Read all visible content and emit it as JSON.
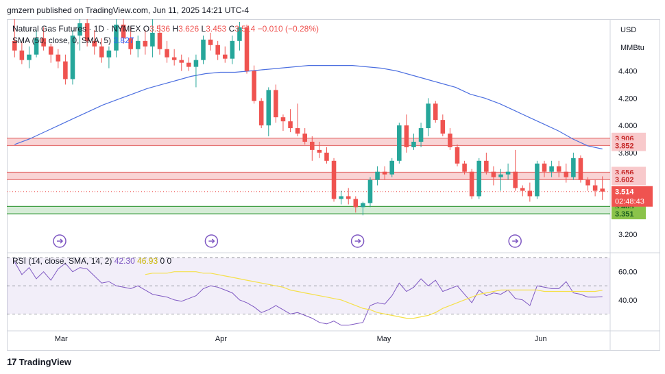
{
  "header": {
    "publisher_text": "gmzern published on TradingView.com, Jun 11, 2025 14:21 UTC-4"
  },
  "legend": {
    "symbol": "Natural Gas Futures · 1D · NYMEX",
    "o_label": "O",
    "o_value": "3.536",
    "h_label": "H",
    "h_value": "3.626",
    "l_label": "L",
    "l_value": "3.453",
    "c_label": "C",
    "c_value": "3.514",
    "change": "−0.010 (−0.28%)",
    "sma_label": "SMA (50, close, 0, SMA, 5)",
    "sma_value": "3.827",
    "rsi_label": "RSI (14, close, SMA, 14, 2)",
    "rsi_value": "42.30",
    "rsi_sma_value": "46.93",
    "rsi_zero1": "0",
    "rsi_zero2": "0"
  },
  "price_scale": {
    "currency": "USD",
    "unit": "MMBtu"
  },
  "footer": {
    "brand": "TradingView",
    "logo_text": "17"
  },
  "colors": {
    "up": "#26a69a",
    "down": "#ef5350",
    "sma": "#4c6fe0",
    "rsi": "#7e57c2",
    "rsi_sma": "#f5e04a",
    "res_zone": "#f7c6c7",
    "sup_zone": "#c8e6c9"
  },
  "chart_data": [
    {
      "type": "candlestick",
      "title": "Natural Gas Futures · 1D · NYMEX",
      "x_ticks": [
        "Mar",
        "Apr",
        "May",
        "Jun"
      ],
      "y_ticks": [
        "3.200",
        "3.400",
        "3.600",
        "3.800",
        "4.000",
        "4.200",
        "4.400"
      ],
      "ylim": [
        3.07,
        4.78
      ],
      "candles": [
        [
          4.62,
          4.78,
          4.5,
          4.55
        ],
        [
          4.55,
          4.62,
          4.45,
          4.48
        ],
        [
          4.48,
          4.58,
          4.42,
          4.52
        ],
        [
          4.52,
          4.7,
          4.5,
          4.64
        ],
        [
          4.64,
          4.72,
          4.55,
          4.58
        ],
        [
          4.58,
          4.6,
          4.46,
          4.52
        ],
        [
          4.52,
          4.56,
          4.42,
          4.47
        ],
        [
          4.47,
          4.52,
          4.3,
          4.34
        ],
        [
          4.34,
          4.7,
          4.3,
          4.66
        ],
        [
          4.66,
          4.78,
          4.55,
          4.75
        ],
        [
          4.75,
          4.78,
          4.58,
          4.62
        ],
        [
          4.62,
          4.7,
          4.52,
          4.58
        ],
        [
          4.58,
          4.64,
          4.46,
          4.5
        ],
        [
          4.5,
          4.58,
          4.42,
          4.55
        ],
        [
          4.55,
          4.78,
          4.5,
          4.74
        ],
        [
          4.74,
          4.78,
          4.6,
          4.64
        ],
        [
          4.64,
          4.72,
          4.52,
          4.56
        ],
        [
          4.56,
          4.66,
          4.5,
          4.62
        ],
        [
          4.62,
          4.7,
          4.52,
          4.58
        ],
        [
          4.58,
          4.78,
          4.5,
          4.68
        ],
        [
          4.68,
          4.74,
          4.52,
          4.56
        ],
        [
          4.56,
          4.62,
          4.46,
          4.5
        ],
        [
          4.5,
          4.56,
          4.44,
          4.48
        ],
        [
          4.48,
          4.52,
          4.4,
          4.46
        ],
        [
          4.46,
          4.5,
          4.4,
          4.43
        ],
        [
          4.43,
          4.52,
          4.28,
          4.48
        ],
        [
          4.48,
          4.66,
          4.45,
          4.63
        ],
        [
          4.63,
          4.68,
          4.55,
          4.59
        ],
        [
          4.59,
          4.62,
          4.48,
          4.52
        ],
        [
          4.52,
          4.58,
          4.46,
          4.49
        ],
        [
          4.49,
          4.66,
          4.45,
          4.62
        ],
        [
          4.62,
          4.76,
          4.55,
          4.72
        ],
        [
          4.72,
          4.74,
          4.38,
          4.4
        ],
        [
          4.4,
          4.44,
          4.16,
          4.18
        ],
        [
          4.18,
          4.2,
          3.98,
          4.0
        ],
        [
          4.0,
          4.28,
          3.92,
          4.26
        ],
        [
          4.26,
          4.3,
          4.02,
          4.06
        ],
        [
          4.06,
          4.08,
          3.96,
          4.03
        ],
        [
          4.03,
          4.12,
          3.95,
          3.98
        ],
        [
          3.98,
          4.16,
          3.92,
          3.94
        ],
        [
          3.94,
          3.98,
          3.86,
          3.88
        ],
        [
          3.88,
          3.92,
          3.74,
          3.82
        ],
        [
          3.82,
          3.88,
          3.76,
          3.8
        ],
        [
          3.8,
          3.84,
          3.72,
          3.74
        ],
        [
          3.74,
          3.76,
          3.44,
          3.46
        ],
        [
          3.46,
          3.52,
          3.42,
          3.48
        ],
        [
          3.48,
          3.54,
          3.42,
          3.46
        ],
        [
          3.46,
          3.48,
          3.36,
          3.4
        ],
        [
          3.4,
          3.44,
          3.34,
          3.43
        ],
        [
          3.43,
          3.62,
          3.4,
          3.6
        ],
        [
          3.6,
          3.7,
          3.56,
          3.66
        ],
        [
          3.66,
          3.7,
          3.6,
          3.64
        ],
        [
          3.64,
          3.76,
          3.62,
          3.74
        ],
        [
          3.74,
          4.02,
          3.72,
          4.0
        ],
        [
          4.0,
          4.08,
          3.8,
          3.84
        ],
        [
          3.84,
          3.94,
          3.82,
          3.88
        ],
        [
          3.88,
          4.02,
          3.84,
          3.98
        ],
        [
          3.98,
          4.2,
          3.92,
          4.16
        ],
        [
          4.16,
          4.18,
          4.02,
          4.04
        ],
        [
          4.04,
          4.08,
          3.92,
          3.94
        ],
        [
          3.94,
          3.98,
          3.82,
          3.84
        ],
        [
          3.84,
          3.86,
          3.7,
          3.72
        ],
        [
          3.72,
          3.74,
          3.64,
          3.66
        ],
        [
          3.66,
          3.68,
          3.46,
          3.48
        ],
        [
          3.48,
          3.76,
          3.46,
          3.74
        ],
        [
          3.74,
          3.8,
          3.64,
          3.66
        ],
        [
          3.66,
          3.7,
          3.56,
          3.62
        ],
        [
          3.62,
          3.68,
          3.52,
          3.64
        ],
        [
          3.64,
          3.72,
          3.6,
          3.66
        ],
        [
          3.66,
          3.82,
          3.52,
          3.54
        ],
        [
          3.54,
          3.56,
          3.48,
          3.52
        ],
        [
          3.52,
          3.58,
          3.44,
          3.48
        ],
        [
          3.48,
          3.74,
          3.46,
          3.72
        ],
        [
          3.72,
          3.74,
          3.62,
          3.66
        ],
        [
          3.66,
          3.74,
          3.62,
          3.7
        ],
        [
          3.7,
          3.74,
          3.62,
          3.66
        ],
        [
          3.66,
          3.72,
          3.58,
          3.62
        ],
        [
          3.62,
          3.8,
          3.6,
          3.76
        ],
        [
          3.76,
          3.78,
          3.58,
          3.6
        ],
        [
          3.6,
          3.62,
          3.52,
          3.56
        ],
        [
          3.56,
          3.6,
          3.48,
          3.52
        ],
        [
          3.536,
          3.626,
          3.453,
          3.514
        ]
      ],
      "sma": [
        3.86,
        3.9,
        3.95,
        4.0,
        4.05,
        4.1,
        4.15,
        4.19,
        4.23,
        4.27,
        4.3,
        4.33,
        4.36,
        4.38,
        4.39,
        4.39,
        4.4,
        4.41,
        4.42,
        4.43,
        4.44,
        4.44,
        4.44,
        4.44,
        4.43,
        4.42,
        4.4,
        4.37,
        4.34,
        4.31,
        4.28,
        4.23,
        4.2,
        4.16,
        4.11,
        4.06,
        4.01,
        3.96,
        3.9,
        3.85,
        3.827
      ],
      "sma_start_index": 0,
      "levels": [
        {
          "label": "3.906",
          "value": 3.906,
          "type": "resistance"
        },
        {
          "label": "3.852",
          "value": 3.852,
          "type": "resistance"
        },
        {
          "label": "3.656",
          "value": 3.656,
          "type": "resistance"
        },
        {
          "label": "3.602",
          "value": 3.602,
          "type": "resistance"
        },
        {
          "label": "3.405",
          "value": 3.405,
          "type": "support"
        },
        {
          "label": "3.351",
          "value": 3.351,
          "type": "support"
        }
      ],
      "last_price_label": "3.514",
      "countdown_label": "02:48:43"
    },
    {
      "type": "line",
      "title": "RSI (14, close, SMA, 14, 2)",
      "y_ticks": [
        "40.00",
        "60.00"
      ],
      "ylim": [
        19,
        73
      ],
      "bands": [
        30,
        50,
        70
      ],
      "rsi": [
        67,
        58,
        63,
        55,
        60,
        54,
        62,
        66,
        60,
        63,
        62,
        57,
        52,
        53,
        50,
        49,
        48,
        50,
        47,
        44,
        43,
        42,
        40,
        39,
        41,
        43,
        48,
        50,
        49,
        47,
        45,
        40,
        38,
        35,
        31,
        33,
        36,
        33,
        30,
        31,
        29,
        27,
        24,
        23,
        25,
        22,
        22,
        23,
        24,
        36,
        38,
        37,
        43,
        52,
        46,
        49,
        55,
        50,
        54,
        46,
        48,
        50,
        44,
        38,
        47,
        43,
        45,
        44,
        47,
        41,
        40,
        36,
        50,
        49,
        48,
        48,
        53,
        45,
        44,
        42,
        42,
        42.3
      ],
      "rsi_sma": [
        58,
        59,
        59,
        59,
        60,
        60,
        60,
        60,
        59,
        59,
        58,
        57,
        56,
        55,
        54,
        53,
        52,
        51,
        50,
        49,
        47,
        46,
        45,
        44,
        43,
        42,
        41,
        40,
        38,
        36,
        34,
        33,
        31,
        30,
        29,
        28,
        27,
        27,
        28,
        29,
        31,
        34,
        36,
        38,
        40,
        42,
        44,
        45,
        46,
        47,
        47,
        47,
        47,
        47,
        47,
        46,
        46,
        46,
        46,
        46,
        46,
        46,
        46,
        46.93
      ],
      "rsi_sma_start_index": 18
    }
  ]
}
